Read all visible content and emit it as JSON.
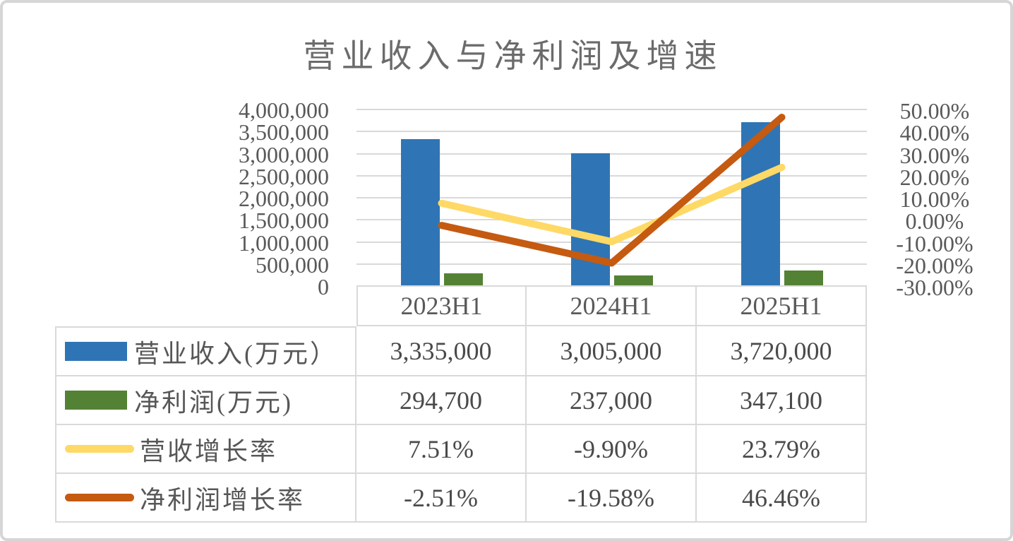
{
  "title": "营业收入与净利润及增速",
  "colors": {
    "revenue_bar": "#2f75b5",
    "net_profit_bar": "#548235",
    "revenue_growth_line": "#ffd966",
    "net_profit_growth_line": "#c55a11",
    "gridline": "#d9d9d9",
    "axis_text": "#595959",
    "title_text": "#6b6b6b"
  },
  "chart_data": {
    "type": "bar",
    "subtype": "combo-bar-line-dual-axis",
    "title": "营业收入与净利润及增速",
    "categories": [
      "2023H1",
      "2024H1",
      "2025H1"
    ],
    "series": [
      {
        "key": "revenue",
        "name": "营业收入(万元）",
        "type": "bar",
        "axis": "left",
        "color": "#2f75b5",
        "values": [
          3335000,
          3005000,
          3720000
        ],
        "display": [
          "3,335,000",
          "3,005,000",
          "3,720,000"
        ]
      },
      {
        "key": "net-profit",
        "name": "净利润(万元)",
        "type": "bar",
        "axis": "left",
        "color": "#548235",
        "values": [
          294700,
          237000,
          347100
        ],
        "display": [
          "294,700",
          "237,000",
          "347,100"
        ]
      },
      {
        "key": "revenue-growth",
        "name": "营收增长率",
        "type": "line",
        "axis": "right",
        "color": "#ffd966",
        "values": [
          7.51,
          -9.9,
          23.79
        ],
        "display": [
          "7.51%",
          "-9.90%",
          "23.79%"
        ]
      },
      {
        "key": "net-profit-growth",
        "name": "净利润增长率",
        "type": "line",
        "axis": "right",
        "color": "#c55a11",
        "values": [
          -2.51,
          -19.58,
          46.46
        ],
        "display": [
          "-2.51%",
          "-19.58%",
          "46.46%"
        ]
      }
    ],
    "left_axis": {
      "min": 0,
      "max": 4000000,
      "ticks": [
        "4,000,000",
        "3,500,000",
        "3,000,000",
        "2,500,000",
        "2,000,000",
        "1,500,000",
        "1,000,000",
        "500,000",
        "0"
      ]
    },
    "right_axis": {
      "min": -30,
      "max": 50,
      "ticks": [
        "50.00%",
        "40.00%",
        "30.00%",
        "20.00%",
        "10.00%",
        "0.00%",
        "-10.00%",
        "-20.00%",
        "-30.00%"
      ]
    },
    "grid": true,
    "legend_position": "table-left"
  }
}
